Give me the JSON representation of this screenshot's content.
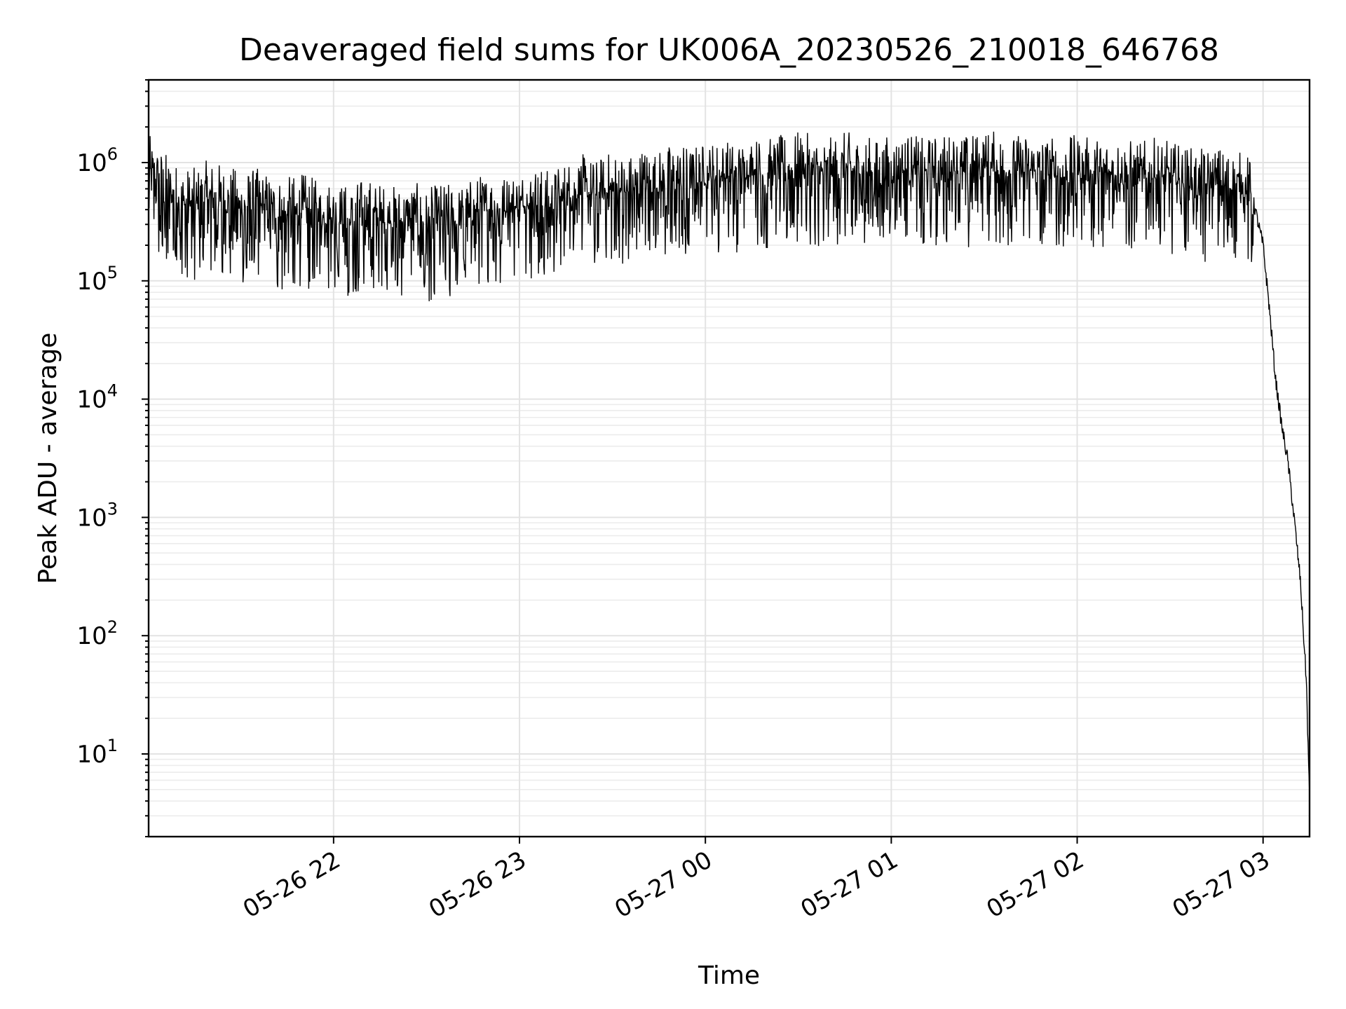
{
  "chart_data": {
    "type": "line",
    "title": "Deaveraged field sums for UK006A_20230526_210018_646768",
    "xlabel": "Time",
    "ylabel": "Peak ADU - average",
    "yscale": "log",
    "grid": true,
    "xlim": [
      "2023-05-26 21:00:18",
      "2023-05-27 03:15:00"
    ],
    "ylim": [
      2,
      5000000
    ],
    "xticks": [
      {
        "t": "2023-05-26 22:00",
        "label": "05-26 22"
      },
      {
        "t": "2023-05-26 23:00",
        "label": "05-26 23"
      },
      {
        "t": "2023-05-27 00:00",
        "label": "05-27 00"
      },
      {
        "t": "2023-05-27 01:00",
        "label": "05-27 01"
      },
      {
        "t": "2023-05-27 02:00",
        "label": "05-27 02"
      },
      {
        "t": "2023-05-27 03:00",
        "label": "05-27 03"
      }
    ],
    "yticks": [
      {
        "value": 10,
        "base": "10",
        "exp": "1"
      },
      {
        "value": 100,
        "base": "10",
        "exp": "2"
      },
      {
        "value": 1000,
        "base": "10",
        "exp": "3"
      },
      {
        "value": 10000,
        "base": "10",
        "exp": "4"
      },
      {
        "value": 100000,
        "base": "10",
        "exp": "5"
      },
      {
        "value": 1000000,
        "base": "10",
        "exp": "6"
      }
    ],
    "series": [
      {
        "color": "#000000",
        "x": [
          "2023-05-26 21:00:18",
          "2023-05-26 21:05",
          "2023-05-26 21:10",
          "2023-05-26 21:15",
          "2023-05-26 21:20",
          "2023-05-26 21:25",
          "2023-05-26 21:30",
          "2023-05-26 21:35",
          "2023-05-26 21:40",
          "2023-05-26 21:45",
          "2023-05-26 21:50",
          "2023-05-26 21:55",
          "2023-05-26 22:00",
          "2023-05-26 22:05",
          "2023-05-26 22:10",
          "2023-05-26 22:15",
          "2023-05-26 22:20",
          "2023-05-26 22:25",
          "2023-05-26 22:30",
          "2023-05-26 22:35",
          "2023-05-26 22:40",
          "2023-05-26 22:45",
          "2023-05-26 22:50",
          "2023-05-26 22:55",
          "2023-05-26 23:00",
          "2023-05-26 23:05",
          "2023-05-26 23:10",
          "2023-05-26 23:15",
          "2023-05-26 23:20",
          "2023-05-26 23:25",
          "2023-05-26 23:30",
          "2023-05-26 23:35",
          "2023-05-26 23:40",
          "2023-05-26 23:45",
          "2023-05-26 23:50",
          "2023-05-26 23:55",
          "2023-05-27 00:00",
          "2023-05-27 00:05",
          "2023-05-27 00:10",
          "2023-05-27 00:15",
          "2023-05-27 00:20",
          "2023-05-27 00:25",
          "2023-05-27 00:30",
          "2023-05-27 00:35",
          "2023-05-27 00:40",
          "2023-05-27 00:45",
          "2023-05-27 00:50",
          "2023-05-27 00:55",
          "2023-05-27 01:00",
          "2023-05-27 01:05",
          "2023-05-27 01:10",
          "2023-05-27 01:15",
          "2023-05-27 01:20",
          "2023-05-27 01:25",
          "2023-05-27 01:30",
          "2023-05-27 01:35",
          "2023-05-27 01:40",
          "2023-05-27 01:45",
          "2023-05-27 01:50",
          "2023-05-27 01:55",
          "2023-05-27 02:00",
          "2023-05-27 02:05",
          "2023-05-27 02:10",
          "2023-05-27 02:15",
          "2023-05-27 02:20",
          "2023-05-27 02:25",
          "2023-05-27 02:30",
          "2023-05-27 02:35",
          "2023-05-27 02:40",
          "2023-05-27 02:45",
          "2023-05-27 02:50",
          "2023-05-27 02:55",
          "2023-05-27 02:57",
          "2023-05-27 03:00",
          "2023-05-27 03:02",
          "2023-05-27 03:04",
          "2023-05-27 03:06",
          "2023-05-27 03:08",
          "2023-05-27 03:10",
          "2023-05-27 03:12",
          "2023-05-27 03:14",
          "2023-05-27 03:15"
        ],
        "y": [
          800000,
          600000,
          450000,
          420000,
          500000,
          450000,
          400000,
          420000,
          380000,
          350000,
          380000,
          330000,
          350000,
          300000,
          350000,
          320000,
          300000,
          330000,
          280000,
          320000,
          300000,
          350000,
          400000,
          380000,
          420000,
          450000,
          400000,
          500000,
          550000,
          500000,
          600000,
          550000,
          650000,
          600000,
          700000,
          650000,
          700000,
          750000,
          700000,
          800000,
          750000,
          800000,
          850000,
          800000,
          750000,
          850000,
          800000,
          750000,
          800000,
          850000,
          750000,
          800000,
          850000,
          800000,
          900000,
          850000,
          800000,
          850000,
          800000,
          750000,
          800000,
          750000,
          800000,
          750000,
          700000,
          750000,
          700000,
          650000,
          600000,
          650000,
          600000,
          550000,
          450000,
          200000,
          60000,
          15000,
          6000,
          3000,
          1000,
          300,
          40,
          4
        ],
        "noise": {
          "log10_amplitude": 0.45,
          "regime_end": "2023-05-27 02:57"
        }
      }
    ]
  }
}
